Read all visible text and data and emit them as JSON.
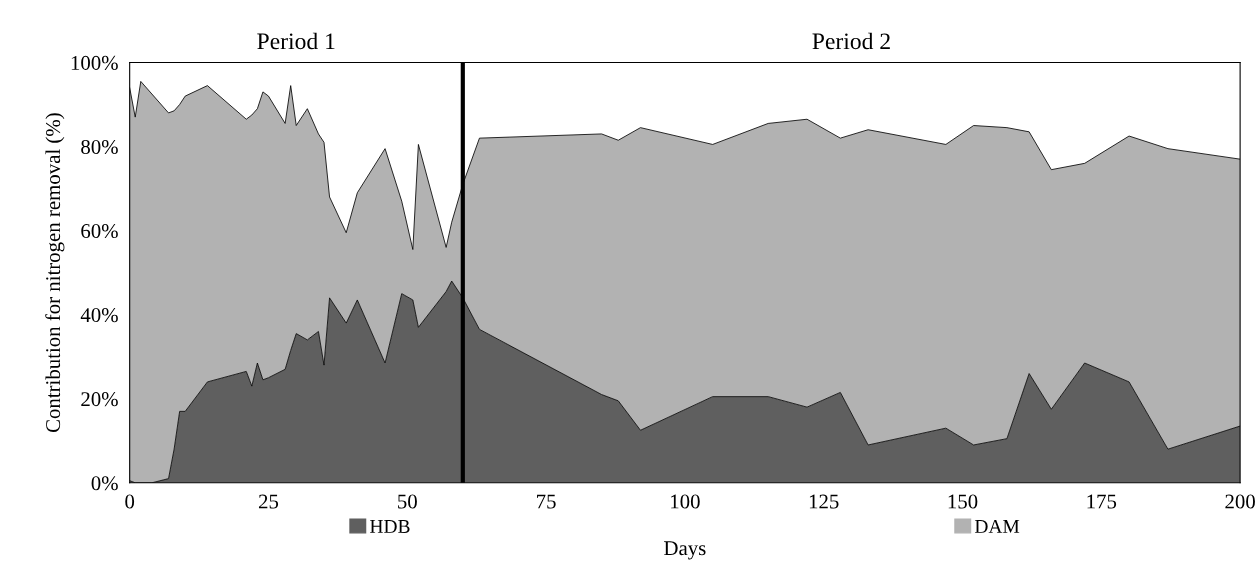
{
  "chart_data": {
    "type": "area",
    "stacked": true,
    "xlabel": "Days",
    "ylabel": "Contribution for nitrogen removal (%)",
    "x": [
      0,
      1,
      2,
      4,
      7,
      8,
      9,
      10,
      14,
      21,
      22,
      23,
      24,
      25,
      28,
      29,
      30,
      32,
      34,
      35,
      36,
      39,
      41,
      46,
      49,
      51,
      52,
      57,
      58,
      60,
      63,
      85,
      88,
      92,
      105,
      115,
      122,
      128,
      133,
      147,
      152,
      158,
      162,
      166,
      172,
      180,
      187,
      200
    ],
    "series": [
      {
        "name": "HDB",
        "color": "#5f5f5f",
        "values": [
          0.5,
          0,
          0,
          0,
          1,
          8,
          17,
          17,
          24,
          26.5,
          23,
          28.5,
          24.5,
          25,
          27,
          31.5,
          35.5,
          34,
          36,
          28,
          44,
          38,
          43.5,
          28.5,
          45,
          43.5,
          37,
          45.5,
          48,
          44,
          36.5,
          21,
          19.5,
          12.5,
          20.5,
          20.5,
          18,
          21.5,
          9,
          13,
          9,
          10.5,
          26,
          17.5,
          28.5,
          24,
          8,
          13.5
        ]
      },
      {
        "name": "DAM",
        "color": "#b2b2b2",
        "values": [
          93.5,
          87,
          95.5,
          92.5,
          87,
          80.5,
          73,
          75,
          70.5,
          60,
          64.5,
          60.5,
          68.5,
          67,
          58.5,
          63,
          49.5,
          55,
          47,
          53,
          24,
          21.5,
          25.5,
          51,
          22,
          12,
          43.5,
          10.5,
          14,
          27,
          45.5,
          62,
          62,
          72,
          60,
          65,
          68.5,
          60.5,
          75,
          67.5,
          76,
          74,
          57.5,
          57,
          47.5,
          58.5,
          71.5,
          63.5
        ]
      }
    ],
    "xlim": [
      0,
      200
    ],
    "xticks": [
      0,
      25,
      50,
      75,
      100,
      125,
      150,
      175,
      200
    ],
    "ylim": [
      0,
      100
    ],
    "yticks": [
      {
        "value": 0,
        "label": "0%"
      },
      {
        "value": 20,
        "label": "20%"
      },
      {
        "value": 40,
        "label": "40%"
      },
      {
        "value": 60,
        "label": "60%"
      },
      {
        "value": 80,
        "label": "80%"
      },
      {
        "value": 100,
        "label": "100%"
      }
    ],
    "ref_lines": [
      {
        "axis": "x",
        "value": 60,
        "color": "#000000",
        "line_style": "solid"
      }
    ],
    "annotations": [
      "Period 1",
      "Period 2"
    ],
    "legend": "bottom",
    "grid": false
  }
}
